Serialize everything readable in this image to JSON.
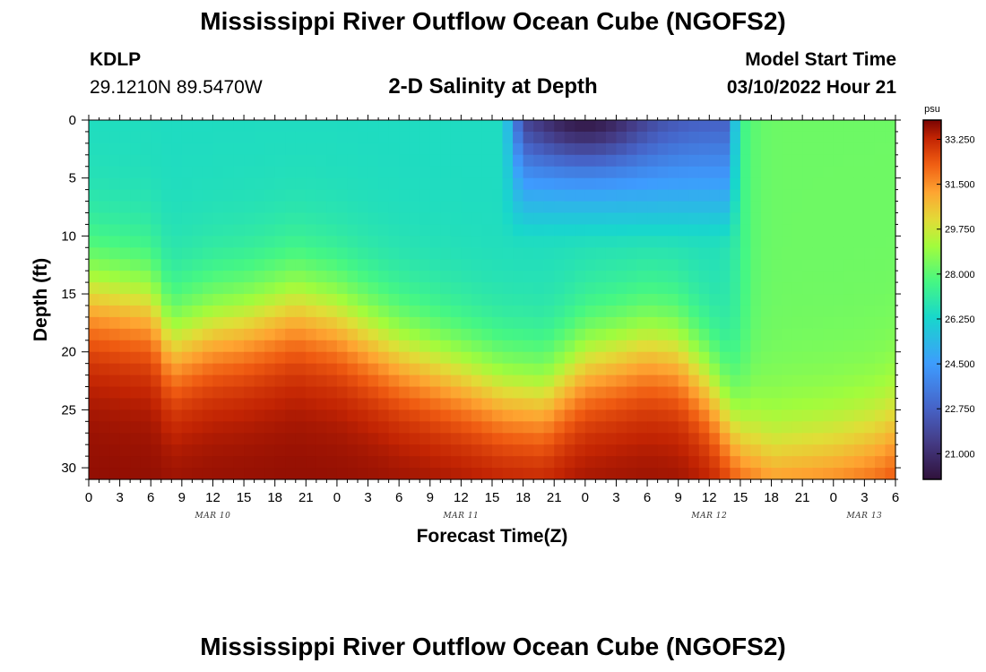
{
  "header": {
    "title": "Mississippi River Outflow Ocean Cube (NGOFS2)",
    "station": "KDLP",
    "coords": "29.1210N  89.5470W",
    "subtitle": "2-D Salinity at Depth",
    "model_start_label": "Model Start Time",
    "model_start_value": "03/10/2022 Hour 21"
  },
  "footer": {
    "title": "Mississippi River Outflow Ocean Cube (NGOFS2)"
  },
  "chart_data": {
    "type": "heatmap",
    "title": "2-D Salinity at Depth",
    "xlabel": "Forecast Time(Z)",
    "ylabel": "Depth (ft)",
    "x_tick_labels": [
      "0",
      "3",
      "6",
      "9",
      "12",
      "15",
      "18",
      "21",
      "0",
      "3",
      "6",
      "9",
      "12",
      "15",
      "18",
      "21",
      "0",
      "3",
      "6",
      "9",
      "12",
      "15",
      "18",
      "21",
      "0",
      "3",
      "6"
    ],
    "x_range_hours": [
      0,
      78
    ],
    "day_labels": [
      {
        "label": "MAR 10",
        "hour": 12
      },
      {
        "label": "MAR 11",
        "hour": 36
      },
      {
        "label": "MAR 12",
        "hour": 60
      },
      {
        "label": "MAR 13",
        "hour": 75
      }
    ],
    "y_ticks": [
      0,
      5,
      10,
      15,
      20,
      25,
      30
    ],
    "y_range": [
      0,
      31
    ],
    "y_inverted": true,
    "colorbar": {
      "unit": "psu",
      "min": 20.0,
      "max": 34.0,
      "tick_values": [
        21.0,
        22.75,
        24.5,
        26.25,
        28.0,
        29.75,
        31.5,
        33.25
      ],
      "tick_labels": [
        "21.000",
        "22.750",
        "24.500",
        "26.250",
        "28.000",
        "29.750",
        "31.500",
        "33.250"
      ]
    },
    "field_description": {
      "surface_salinity_base": 26.5,
      "bottom_salinity_max": 33.8,
      "halocline_depth_by_hour": [
        [
          0,
          9
        ],
        [
          6,
          10
        ],
        [
          8,
          13.5
        ],
        [
          12,
          12
        ],
        [
          15,
          11.5
        ],
        [
          20,
          10
        ],
        [
          24,
          11
        ],
        [
          30,
          14
        ],
        [
          36,
          16
        ],
        [
          40,
          17.5
        ],
        [
          44,
          18
        ],
        [
          48,
          15
        ],
        [
          54,
          13.5
        ],
        [
          57,
          14
        ],
        [
          60,
          17
        ],
        [
          63,
          22
        ],
        [
          66,
          24
        ],
        [
          72,
          23
        ],
        [
          76,
          22
        ],
        [
          78,
          21
        ]
      ],
      "low_salinity_plume": {
        "start_hour": 40,
        "end_hour": 63,
        "center_hour": 48,
        "min_salinity": 20.2,
        "depth_ft": 10
      },
      "offshore_water": {
        "start_hour": 63,
        "surface_salinity": 28.3
      }
    }
  }
}
